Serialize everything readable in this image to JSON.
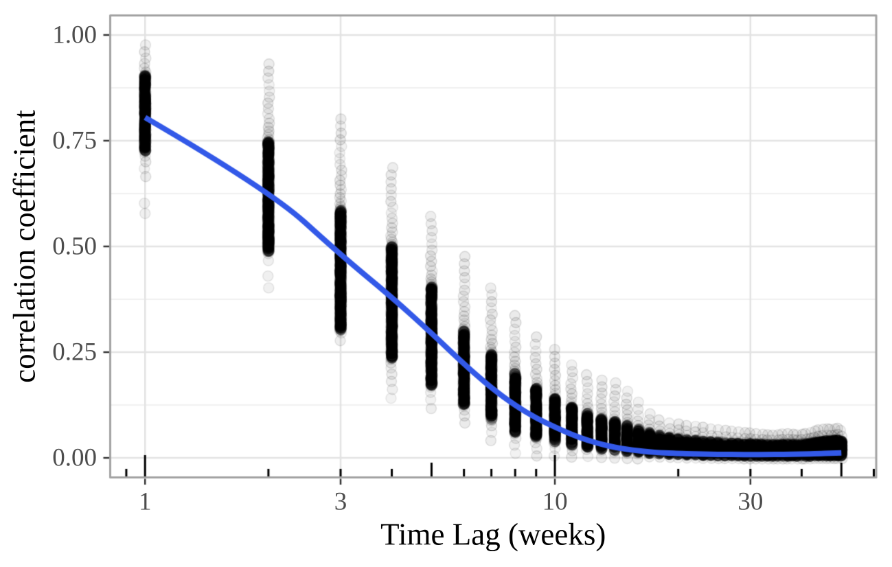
{
  "chart_data": {
    "type": "scatter",
    "title": "",
    "xlabel": "Time Lag (weeks)",
    "ylabel": "correlation coefficient",
    "x_scale": "log10",
    "x_ticks": [
      1,
      3,
      10,
      30
    ],
    "x_tick_labels": [
      "1",
      "3",
      "10",
      "30"
    ],
    "y_ticks": [
      0,
      0.25,
      0.5,
      0.75,
      1.0
    ],
    "y_tick_labels": [
      "0.00",
      "0.25",
      "0.50",
      "0.75",
      "1.00"
    ],
    "y_minor_gridlines": [
      0.125,
      0.375,
      0.625,
      0.875
    ],
    "x_axis_range_log10": [
      -0.085,
      1.784
    ],
    "y_axis_range": [
      -0.047,
      1.047
    ],
    "grid": {
      "major": true,
      "minor_horizontal": true,
      "minor_vertical": false
    },
    "log_tick_marks": {
      "long": [
        1,
        10
      ],
      "mid": [
        5,
        50
      ],
      "short": [
        0.9,
        2,
        3,
        4,
        6,
        7,
        8,
        9,
        20,
        30,
        40,
        60
      ]
    },
    "points_style": {
      "color": "#000000",
      "alpha": 0.07,
      "radius": 7.5
    },
    "smooth_line": {
      "color": "#3359E8",
      "width": 8,
      "points": [
        [
          1,
          0.805
        ],
        [
          2,
          0.635
        ],
        [
          3,
          0.48
        ],
        [
          4,
          0.38
        ],
        [
          5,
          0.295
        ],
        [
          6,
          0.222
        ],
        [
          7,
          0.165
        ],
        [
          8,
          0.124
        ],
        [
          9,
          0.094
        ],
        [
          10,
          0.073
        ],
        [
          11,
          0.055
        ],
        [
          12,
          0.042
        ],
        [
          13,
          0.032
        ],
        [
          14,
          0.025
        ],
        [
          15,
          0.02
        ],
        [
          16,
          0.017
        ],
        [
          17,
          0.014
        ],
        [
          18,
          0.0125
        ],
        [
          19,
          0.0113
        ],
        [
          20,
          0.0104
        ],
        [
          22,
          0.0092
        ],
        [
          24,
          0.0085
        ],
        [
          26,
          0.0081
        ],
        [
          28,
          0.0079
        ],
        [
          30,
          0.0078
        ],
        [
          33,
          0.0079
        ],
        [
          36,
          0.0082
        ],
        [
          40,
          0.009
        ],
        [
          44,
          0.01
        ],
        [
          47,
          0.011
        ],
        [
          50,
          0.012
        ]
      ]
    },
    "points_by_lag": [
      {
        "lag": 1,
        "max": 0.985,
        "dense_hi": 0.905,
        "dense_lo": 0.725,
        "min": 0.655,
        "outliers": [
          0.578,
          0.602
        ]
      },
      {
        "lag": 2,
        "max": 0.94,
        "dense_hi": 0.748,
        "dense_lo": 0.487,
        "min": 0.455,
        "outliers": [
          0.402,
          0.43
        ]
      },
      {
        "lag": 3,
        "max": 0.81,
        "dense_hi": 0.585,
        "dense_lo": 0.3,
        "min": 0.265,
        "outliers": []
      },
      {
        "lag": 4,
        "max": 0.695,
        "dense_hi": 0.5,
        "dense_lo": 0.235,
        "min": 0.13,
        "outliers": []
      },
      {
        "lag": 5,
        "max": 0.58,
        "dense_hi": 0.405,
        "dense_lo": 0.17,
        "min": 0.105,
        "outliers": []
      },
      {
        "lag": 6,
        "max": 0.485,
        "dense_hi": 0.3,
        "dense_lo": 0.125,
        "min": 0.073,
        "outliers": []
      },
      {
        "lag": 7,
        "max": 0.41,
        "dense_hi": 0.245,
        "dense_lo": 0.09,
        "min": 0.03,
        "outliers": []
      },
      {
        "lag": 8,
        "max": 0.345,
        "dense_hi": 0.2,
        "dense_lo": 0.06,
        "min": 0.0,
        "outliers": []
      },
      {
        "lag": 9,
        "max": 0.295,
        "dense_hi": 0.165,
        "dense_lo": 0.048,
        "min": -0.005,
        "outliers": []
      },
      {
        "lag": 10,
        "max": 0.265,
        "dense_hi": 0.14,
        "dense_lo": 0.038,
        "min": -0.006,
        "outliers": []
      },
      {
        "lag": 11,
        "max": 0.228,
        "dense_hi": 0.12,
        "dense_lo": 0.03,
        "min": -0.007,
        "outliers": []
      },
      {
        "lag": 12,
        "max": 0.205,
        "dense_hi": 0.105,
        "dense_lo": 0.024,
        "min": -0.008,
        "outliers": []
      },
      {
        "lag": 13,
        "max": 0.192,
        "dense_hi": 0.094,
        "dense_lo": 0.02,
        "min": -0.009,
        "outliers": []
      },
      {
        "lag": 14,
        "max": 0.186,
        "dense_hi": 0.086,
        "dense_lo": 0.017,
        "min": -0.01,
        "outliers": []
      },
      {
        "lag": 15,
        "max": 0.166,
        "dense_hi": 0.077,
        "dense_lo": 0.014,
        "min": -0.01,
        "outliers": []
      },
      {
        "lag": 16,
        "max": 0.141,
        "dense_hi": 0.068,
        "dense_lo": 0.012,
        "min": -0.01,
        "outliers": []
      },
      {
        "lag": 17,
        "max": 0.112,
        "dense_hi": 0.06,
        "dense_lo": 0.01,
        "min": -0.011,
        "outliers": []
      },
      {
        "lag": 18,
        "max": 0.098,
        "dense_hi": 0.054,
        "dense_lo": 0.009,
        "min": -0.011,
        "outliers": []
      },
      {
        "lag": 19,
        "max": 0.09,
        "dense_hi": 0.049,
        "dense_lo": 0.008,
        "min": -0.011,
        "outliers": []
      },
      {
        "lag": 20,
        "max": 0.088,
        "dense_hi": 0.046,
        "dense_lo": 0.007,
        "min": -0.012,
        "outliers": []
      },
      {
        "lag": 21,
        "max": 0.084,
        "dense_hi": 0.044,
        "dense_lo": 0.006,
        "min": -0.012,
        "outliers": []
      },
      {
        "lag": 22,
        "max": 0.082,
        "dense_hi": 0.042,
        "dense_lo": 0.006,
        "min": -0.012,
        "outliers": []
      },
      {
        "lag": 23,
        "max": 0.08,
        "dense_hi": 0.04,
        "dense_lo": 0.005,
        "min": -0.012,
        "outliers": []
      },
      {
        "lag": 24,
        "max": 0.078,
        "dense_hi": 0.039,
        "dense_lo": 0.005,
        "min": -0.012,
        "outliers": []
      },
      {
        "lag": 25,
        "max": 0.076,
        "dense_hi": 0.038,
        "dense_lo": 0.004,
        "min": -0.012,
        "outliers": []
      },
      {
        "lag": 26,
        "max": 0.074,
        "dense_hi": 0.037,
        "dense_lo": 0.004,
        "min": -0.012,
        "outliers": []
      },
      {
        "lag": 27,
        "max": 0.072,
        "dense_hi": 0.036,
        "dense_lo": 0.004,
        "min": -0.012,
        "outliers": []
      },
      {
        "lag": 28,
        "max": 0.07,
        "dense_hi": 0.035,
        "dense_lo": 0.004,
        "min": -0.012,
        "outliers": []
      },
      {
        "lag": 29,
        "max": 0.068,
        "dense_hi": 0.034,
        "dense_lo": 0.003,
        "min": -0.012,
        "outliers": []
      },
      {
        "lag": 30,
        "max": 0.067,
        "dense_hi": 0.034,
        "dense_lo": 0.003,
        "min": -0.012,
        "outliers": []
      },
      {
        "lag": 31,
        "max": 0.065,
        "dense_hi": 0.033,
        "dense_lo": 0.003,
        "min": -0.012,
        "outliers": []
      },
      {
        "lag": 32,
        "max": 0.063,
        "dense_hi": 0.033,
        "dense_lo": 0.003,
        "min": -0.012,
        "outliers": []
      },
      {
        "lag": 33,
        "max": 0.062,
        "dense_hi": 0.032,
        "dense_lo": 0.003,
        "min": -0.012,
        "outliers": []
      },
      {
        "lag": 34,
        "max": 0.061,
        "dense_hi": 0.032,
        "dense_lo": 0.003,
        "min": -0.012,
        "outliers": []
      },
      {
        "lag": 35,
        "max": 0.062,
        "dense_hi": 0.032,
        "dense_lo": 0.003,
        "min": -0.012,
        "outliers": []
      },
      {
        "lag": 36,
        "max": 0.064,
        "dense_hi": 0.033,
        "dense_lo": 0.003,
        "min": -0.012,
        "outliers": []
      },
      {
        "lag": 37,
        "max": 0.065,
        "dense_hi": 0.033,
        "dense_lo": 0.003,
        "min": -0.012,
        "outliers": []
      },
      {
        "lag": 38,
        "max": 0.063,
        "dense_hi": 0.033,
        "dense_lo": 0.003,
        "min": -0.012,
        "outliers": []
      },
      {
        "lag": 39,
        "max": 0.062,
        "dense_hi": 0.032,
        "dense_lo": 0.003,
        "min": -0.012,
        "outliers": []
      },
      {
        "lag": 40,
        "max": 0.063,
        "dense_hi": 0.033,
        "dense_lo": 0.003,
        "min": -0.012,
        "outliers": []
      },
      {
        "lag": 41,
        "max": 0.065,
        "dense_hi": 0.034,
        "dense_lo": 0.003,
        "min": -0.012,
        "outliers": []
      },
      {
        "lag": 42,
        "max": 0.068,
        "dense_hi": 0.035,
        "dense_lo": 0.003,
        "min": -0.012,
        "outliers": []
      },
      {
        "lag": 43,
        "max": 0.072,
        "dense_hi": 0.037,
        "dense_lo": 0.004,
        "min": -0.012,
        "outliers": []
      },
      {
        "lag": 44,
        "max": 0.075,
        "dense_hi": 0.039,
        "dense_lo": 0.004,
        "min": -0.012,
        "outliers": []
      },
      {
        "lag": 45,
        "max": 0.077,
        "dense_hi": 0.04,
        "dense_lo": 0.004,
        "min": -0.012,
        "outliers": []
      },
      {
        "lag": 46,
        "max": 0.078,
        "dense_hi": 0.041,
        "dense_lo": 0.004,
        "min": -0.012,
        "outliers": []
      },
      {
        "lag": 47,
        "max": 0.076,
        "dense_hi": 0.041,
        "dense_lo": 0.004,
        "min": -0.012,
        "outliers": []
      },
      {
        "lag": 48,
        "max": 0.077,
        "dense_hi": 0.042,
        "dense_lo": 0.004,
        "min": -0.012,
        "outliers": []
      },
      {
        "lag": 49,
        "max": 0.079,
        "dense_hi": 0.043,
        "dense_lo": 0.004,
        "min": -0.012,
        "outliers": []
      },
      {
        "lag": 50,
        "max": 0.073,
        "dense_hi": 0.04,
        "dense_lo": 0.004,
        "min": -0.012,
        "outliers": []
      }
    ],
    "colors": {
      "background": "#FFFFFF",
      "panel_border": "#A3A3A3",
      "grid_major": "#E3E3E3",
      "grid_minor": "#F0F0F0",
      "axis_tick": "#333333",
      "log_tick": "#000000",
      "tick_label": "#4D4D4D",
      "axis_title": "#000000",
      "point": "#000000",
      "smooth": "#3359E8"
    }
  }
}
